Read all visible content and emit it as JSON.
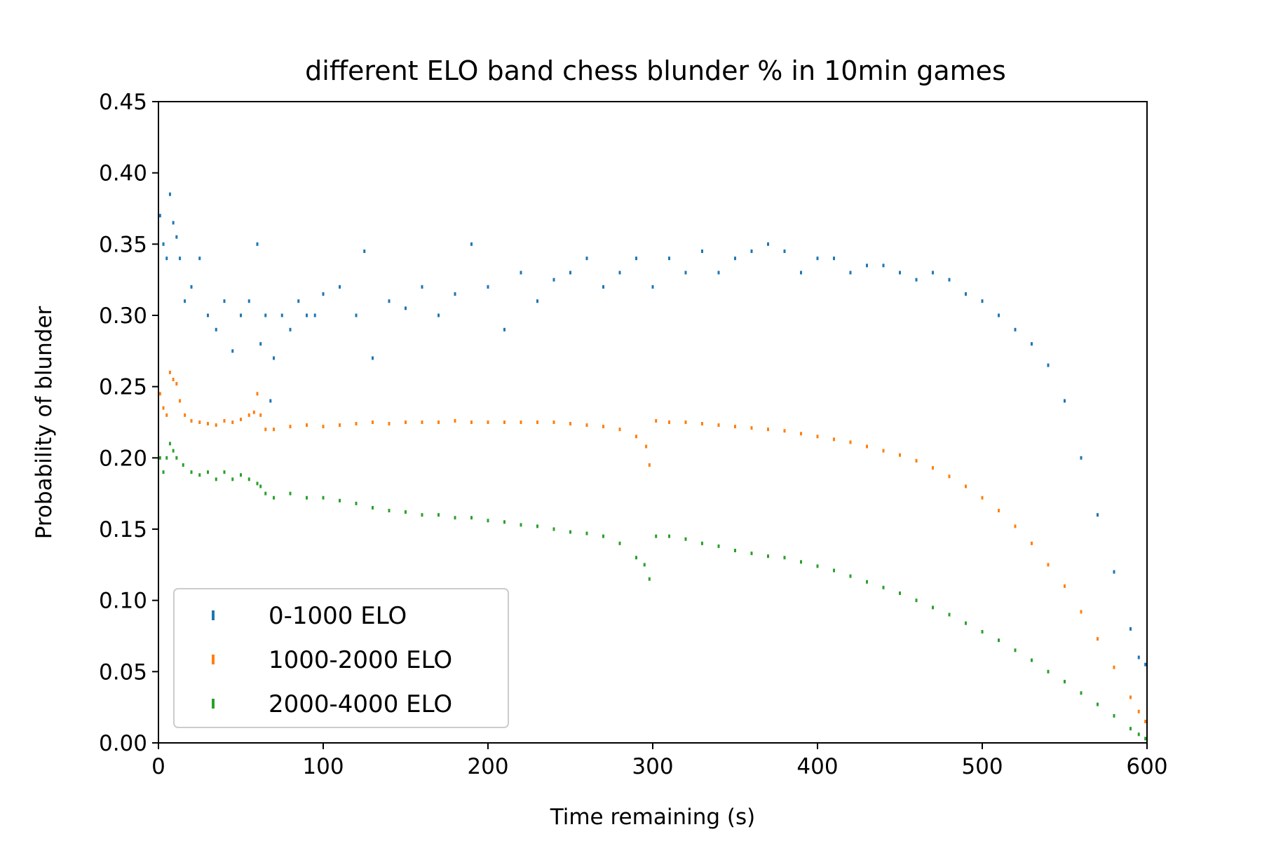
{
  "chart_data": {
    "type": "scatter",
    "title": "different ELO band chess blunder % in 10min games",
    "xlabel": "Time remaining (s)",
    "ylabel": "Probability of blunder",
    "xlim": [
      0,
      600
    ],
    "ylim": [
      0,
      0.45
    ],
    "xticks": [
      "0",
      "100",
      "200",
      "300",
      "400",
      "500",
      "600"
    ],
    "yticks": [
      "0.00",
      "0.05",
      "0.10",
      "0.15",
      "0.20",
      "0.25",
      "0.30",
      "0.35",
      "0.40",
      "0.45"
    ],
    "grid": false,
    "legend_position": "lower-left",
    "series": [
      {
        "name": "0-1000 ELO",
        "color": "#1f77b4",
        "points": [
          [
            1,
            0.37
          ],
          [
            3,
            0.35
          ],
          [
            5,
            0.34
          ],
          [
            7,
            0.385
          ],
          [
            9,
            0.365
          ],
          [
            11,
            0.355
          ],
          [
            13,
            0.34
          ],
          [
            16,
            0.31
          ],
          [
            20,
            0.32
          ],
          [
            25,
            0.34
          ],
          [
            30,
            0.3
          ],
          [
            35,
            0.29
          ],
          [
            40,
            0.31
          ],
          [
            45,
            0.275
          ],
          [
            50,
            0.3
          ],
          [
            55,
            0.31
          ],
          [
            60,
            0.35
          ],
          [
            62,
            0.28
          ],
          [
            65,
            0.3
          ],
          [
            68,
            0.24
          ],
          [
            70,
            0.27
          ],
          [
            75,
            0.3
          ],
          [
            80,
            0.29
          ],
          [
            85,
            0.31
          ],
          [
            90,
            0.3
          ],
          [
            95,
            0.3
          ],
          [
            100,
            0.315
          ],
          [
            110,
            0.32
          ],
          [
            120,
            0.3
          ],
          [
            125,
            0.345
          ],
          [
            130,
            0.27
          ],
          [
            140,
            0.31
          ],
          [
            150,
            0.305
          ],
          [
            160,
            0.32
          ],
          [
            170,
            0.3
          ],
          [
            180,
            0.315
          ],
          [
            190,
            0.35
          ],
          [
            200,
            0.32
          ],
          [
            210,
            0.29
          ],
          [
            220,
            0.33
          ],
          [
            230,
            0.31
          ],
          [
            240,
            0.325
          ],
          [
            250,
            0.33
          ],
          [
            260,
            0.34
          ],
          [
            270,
            0.32
          ],
          [
            280,
            0.33
          ],
          [
            290,
            0.34
          ],
          [
            300,
            0.32
          ],
          [
            310,
            0.34
          ],
          [
            320,
            0.33
          ],
          [
            330,
            0.345
          ],
          [
            340,
            0.33
          ],
          [
            350,
            0.34
          ],
          [
            360,
            0.345
          ],
          [
            370,
            0.35
          ],
          [
            380,
            0.345
          ],
          [
            390,
            0.33
          ],
          [
            400,
            0.34
          ],
          [
            410,
            0.34
          ],
          [
            420,
            0.33
          ],
          [
            430,
            0.335
          ],
          [
            440,
            0.335
          ],
          [
            450,
            0.33
          ],
          [
            460,
            0.325
          ],
          [
            470,
            0.33
          ],
          [
            480,
            0.325
          ],
          [
            490,
            0.315
          ],
          [
            500,
            0.31
          ],
          [
            510,
            0.3
          ],
          [
            520,
            0.29
          ],
          [
            530,
            0.28
          ],
          [
            540,
            0.265
          ],
          [
            550,
            0.24
          ],
          [
            560,
            0.2
          ],
          [
            570,
            0.16
          ],
          [
            580,
            0.12
          ],
          [
            590,
            0.08
          ],
          [
            595,
            0.06
          ],
          [
            599,
            0.055
          ]
        ]
      },
      {
        "name": "1000-2000 ELO",
        "color": "#ff7f0e",
        "points": [
          [
            1,
            0.245
          ],
          [
            3,
            0.235
          ],
          [
            5,
            0.23
          ],
          [
            7,
            0.26
          ],
          [
            9,
            0.255
          ],
          [
            11,
            0.252
          ],
          [
            13,
            0.24
          ],
          [
            16,
            0.23
          ],
          [
            20,
            0.226
          ],
          [
            25,
            0.225
          ],
          [
            30,
            0.224
          ],
          [
            35,
            0.223
          ],
          [
            40,
            0.226
          ],
          [
            45,
            0.225
          ],
          [
            50,
            0.227
          ],
          [
            55,
            0.23
          ],
          [
            58,
            0.232
          ],
          [
            60,
            0.245
          ],
          [
            62,
            0.23
          ],
          [
            65,
            0.22
          ],
          [
            70,
            0.22
          ],
          [
            80,
            0.222
          ],
          [
            90,
            0.223
          ],
          [
            100,
            0.222
          ],
          [
            110,
            0.223
          ],
          [
            120,
            0.224
          ],
          [
            130,
            0.225
          ],
          [
            140,
            0.224
          ],
          [
            150,
            0.225
          ],
          [
            160,
            0.225
          ],
          [
            170,
            0.225
          ],
          [
            180,
            0.226
          ],
          [
            190,
            0.225
          ],
          [
            200,
            0.225
          ],
          [
            210,
            0.225
          ],
          [
            220,
            0.225
          ],
          [
            230,
            0.225
          ],
          [
            240,
            0.225
          ],
          [
            250,
            0.224
          ],
          [
            260,
            0.223
          ],
          [
            270,
            0.222
          ],
          [
            280,
            0.22
          ],
          [
            290,
            0.215
          ],
          [
            296,
            0.208
          ],
          [
            298,
            0.195
          ],
          [
            302,
            0.226
          ],
          [
            310,
            0.225
          ],
          [
            320,
            0.225
          ],
          [
            330,
            0.224
          ],
          [
            340,
            0.223
          ],
          [
            350,
            0.222
          ],
          [
            360,
            0.221
          ],
          [
            370,
            0.22
          ],
          [
            380,
            0.219
          ],
          [
            390,
            0.217
          ],
          [
            400,
            0.215
          ],
          [
            410,
            0.213
          ],
          [
            420,
            0.211
          ],
          [
            430,
            0.208
          ],
          [
            440,
            0.205
          ],
          [
            450,
            0.202
          ],
          [
            460,
            0.198
          ],
          [
            470,
            0.193
          ],
          [
            480,
            0.187
          ],
          [
            490,
            0.18
          ],
          [
            500,
            0.172
          ],
          [
            510,
            0.163
          ],
          [
            520,
            0.152
          ],
          [
            530,
            0.14
          ],
          [
            540,
            0.125
          ],
          [
            550,
            0.11
          ],
          [
            560,
            0.092
          ],
          [
            570,
            0.073
          ],
          [
            580,
            0.053
          ],
          [
            590,
            0.032
          ],
          [
            595,
            0.022
          ],
          [
            599,
            0.015
          ]
        ]
      },
      {
        "name": "2000-4000 ELO",
        "color": "#2ca02c",
        "points": [
          [
            1,
            0.2
          ],
          [
            3,
            0.19
          ],
          [
            5,
            0.2
          ],
          [
            7,
            0.21
          ],
          [
            9,
            0.205
          ],
          [
            11,
            0.2
          ],
          [
            15,
            0.195
          ],
          [
            20,
            0.19
          ],
          [
            25,
            0.188
          ],
          [
            30,
            0.19
          ],
          [
            35,
            0.185
          ],
          [
            40,
            0.19
          ],
          [
            45,
            0.185
          ],
          [
            50,
            0.188
          ],
          [
            55,
            0.185
          ],
          [
            60,
            0.182
          ],
          [
            62,
            0.18
          ],
          [
            65,
            0.175
          ],
          [
            70,
            0.172
          ],
          [
            80,
            0.175
          ],
          [
            90,
            0.172
          ],
          [
            100,
            0.172
          ],
          [
            110,
            0.17
          ],
          [
            120,
            0.168
          ],
          [
            130,
            0.165
          ],
          [
            140,
            0.163
          ],
          [
            150,
            0.162
          ],
          [
            160,
            0.16
          ],
          [
            170,
            0.16
          ],
          [
            180,
            0.158
          ],
          [
            190,
            0.158
          ],
          [
            200,
            0.156
          ],
          [
            210,
            0.155
          ],
          [
            220,
            0.153
          ],
          [
            230,
            0.152
          ],
          [
            240,
            0.15
          ],
          [
            250,
            0.148
          ],
          [
            260,
            0.147
          ],
          [
            270,
            0.145
          ],
          [
            280,
            0.14
          ],
          [
            290,
            0.13
          ],
          [
            295,
            0.125
          ],
          [
            298,
            0.115
          ],
          [
            302,
            0.145
          ],
          [
            310,
            0.145
          ],
          [
            320,
            0.143
          ],
          [
            330,
            0.14
          ],
          [
            340,
            0.138
          ],
          [
            350,
            0.135
          ],
          [
            360,
            0.133
          ],
          [
            370,
            0.131
          ],
          [
            380,
            0.13
          ],
          [
            390,
            0.127
          ],
          [
            400,
            0.124
          ],
          [
            410,
            0.121
          ],
          [
            420,
            0.117
          ],
          [
            430,
            0.113
          ],
          [
            440,
            0.109
          ],
          [
            450,
            0.105
          ],
          [
            460,
            0.1
          ],
          [
            470,
            0.095
          ],
          [
            480,
            0.09
          ],
          [
            490,
            0.084
          ],
          [
            500,
            0.078
          ],
          [
            510,
            0.072
          ],
          [
            520,
            0.065
          ],
          [
            530,
            0.058
          ],
          [
            540,
            0.05
          ],
          [
            550,
            0.043
          ],
          [
            560,
            0.035
          ],
          [
            570,
            0.027
          ],
          [
            580,
            0.019
          ],
          [
            590,
            0.01
          ],
          [
            595,
            0.006
          ],
          [
            599,
            0.003
          ]
        ]
      }
    ]
  }
}
